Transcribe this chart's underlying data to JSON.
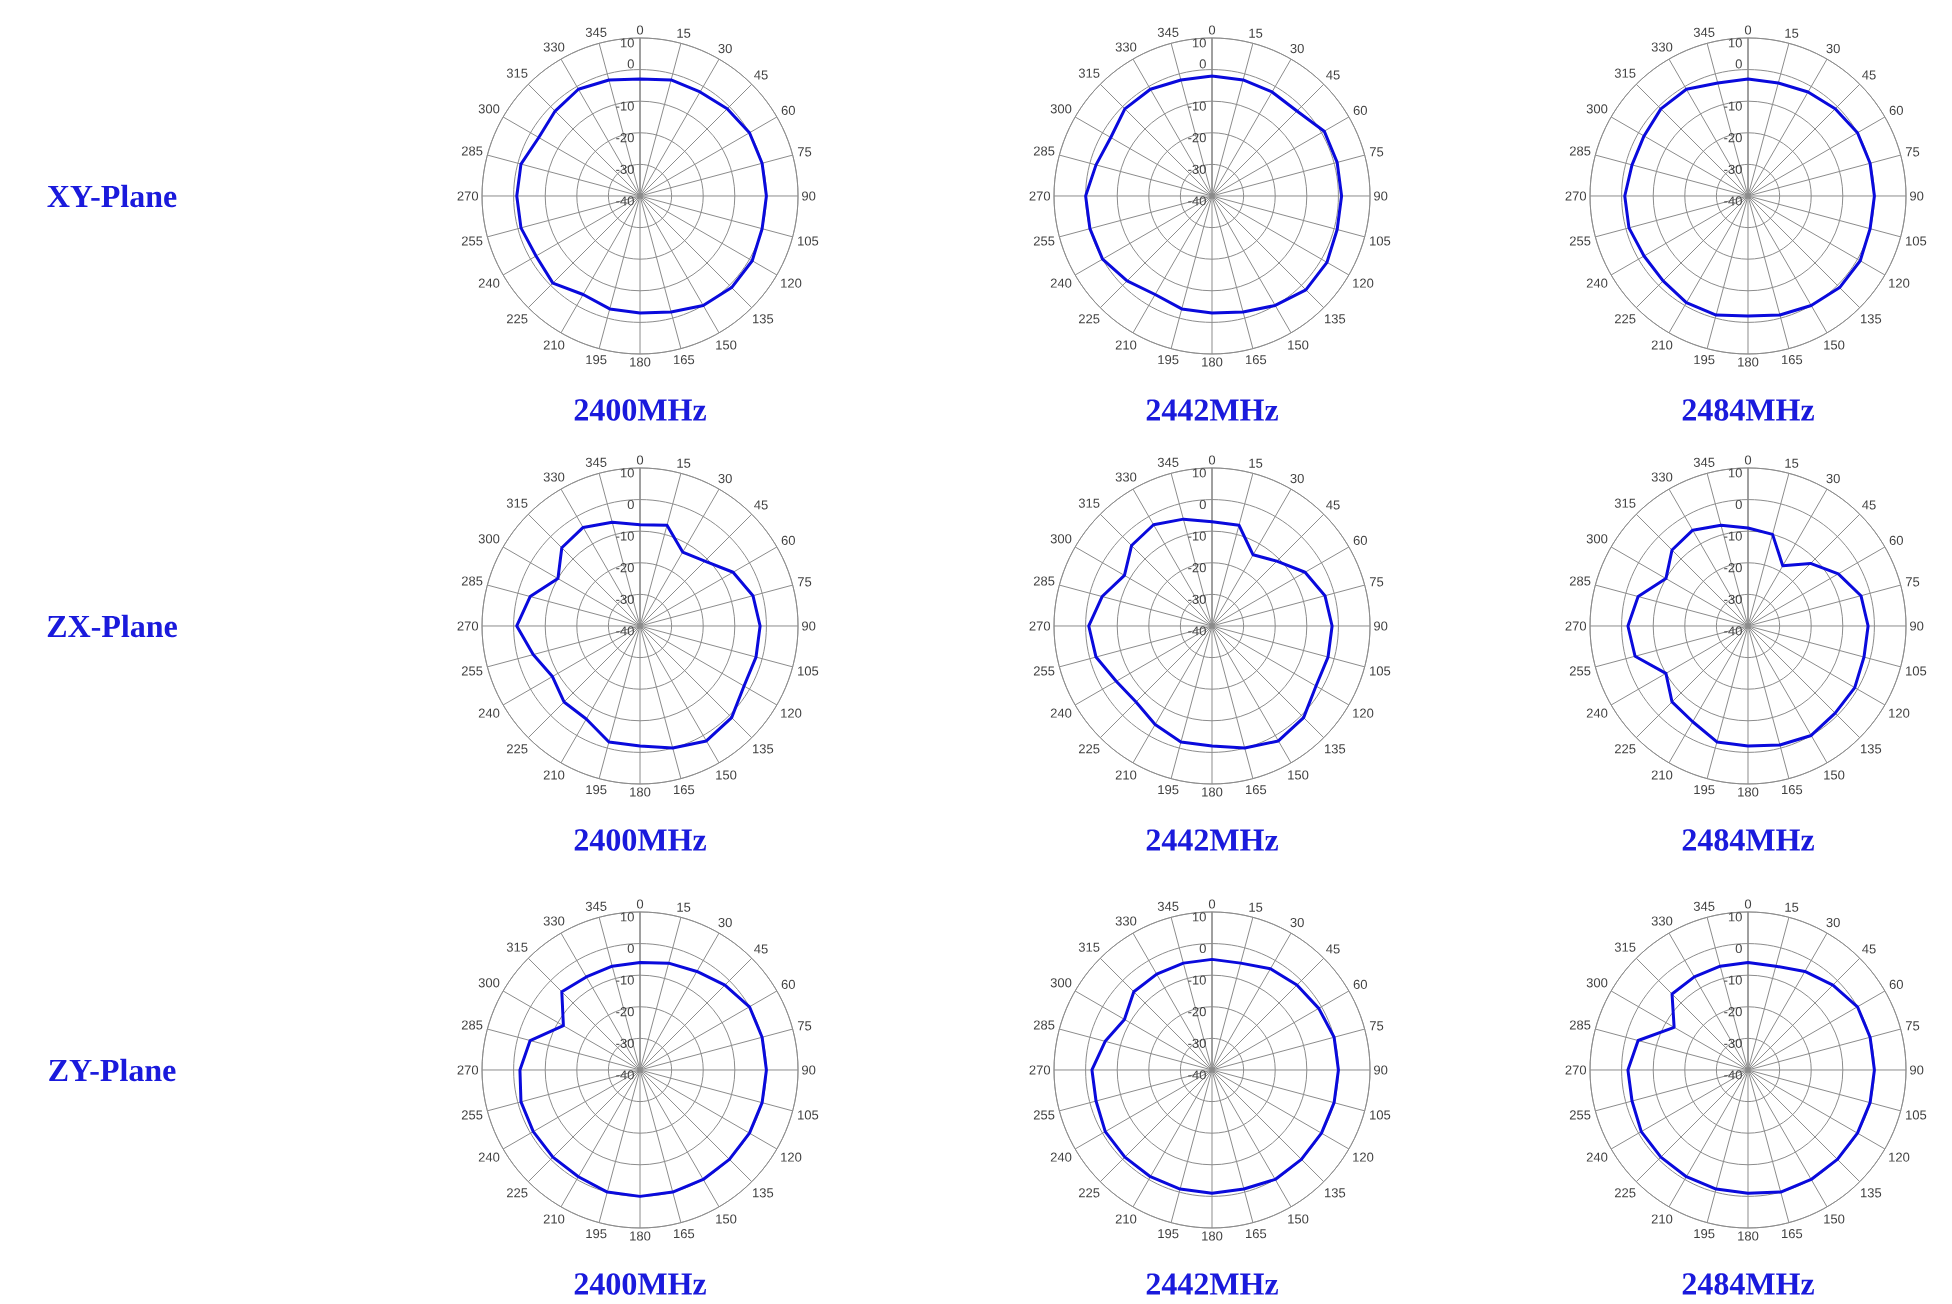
{
  "chart_data": [
    {
      "type": "radar",
      "title": "2400MHz",
      "annotations": [
        "XY-Plane"
      ],
      "categories": [
        "0",
        "15",
        "30",
        "45",
        "60",
        "75",
        "90",
        "105",
        "120",
        "135",
        "150",
        "165",
        "180",
        "195",
        "210",
        "225",
        "240",
        "255",
        "270",
        "285",
        "300",
        "315",
        "330",
        "345"
      ],
      "ylim": [
        -40,
        10
      ],
      "yticks": [
        -40,
        -30,
        -20,
        -10,
        0,
        10
      ],
      "grid": true,
      "marker": "none",
      "series": [
        {
          "color": "#0a0adc",
          "values": [
            -3,
            -2,
            -2,
            -1,
            0,
            0,
            0,
            0,
            1,
            1,
            0,
            -2,
            -3,
            -3,
            -4,
            -1,
            -2,
            -1,
            -1,
            -1,
            -3,
            -2,
            -1,
            -2
          ]
        }
      ]
    },
    {
      "type": "radar",
      "title": "2442MHz",
      "categories": [
        "0",
        "15",
        "30",
        "45",
        "60",
        "75",
        "90",
        "105",
        "120",
        "135",
        "150",
        "165",
        "180",
        "195",
        "210",
        "225",
        "240",
        "255",
        "270",
        "285",
        "300",
        "315",
        "330",
        "345"
      ],
      "ylim": [
        -40,
        10
      ],
      "yticks": [
        -40,
        -30,
        -20,
        -10,
        0,
        10
      ],
      "grid": true,
      "marker": "none",
      "series": [
        {
          "color": "#0a0adc",
          "values": [
            -2,
            -2,
            -2,
            -2,
            1,
            1,
            1,
            1,
            2,
            2,
            0,
            -2,
            -3,
            -3,
            -4,
            -2,
            0,
            0,
            0,
            -2,
            -3,
            -1,
            -1,
            -2
          ]
        }
      ]
    },
    {
      "type": "radar",
      "title": "2484MHz",
      "categories": [
        "0",
        "15",
        "30",
        "45",
        "60",
        "75",
        "90",
        "105",
        "120",
        "135",
        "150",
        "165",
        "180",
        "195",
        "210",
        "225",
        "240",
        "255",
        "270",
        "285",
        "300",
        "315",
        "330",
        "345"
      ],
      "ylim": [
        -40,
        10
      ],
      "yticks": [
        -40,
        -30,
        -20,
        -10,
        0,
        10
      ],
      "grid": true,
      "marker": "none",
      "series": [
        {
          "color": "#0a0adc",
          "values": [
            -3,
            -3,
            -2,
            -1,
            0,
            0,
            0,
            0,
            1,
            1,
            0,
            -1,
            -2,
            -1,
            -1,
            -2,
            -2,
            -1,
            -1,
            -2,
            -2,
            -1,
            -1,
            -3
          ]
        }
      ]
    },
    {
      "type": "radar",
      "title": "2400MHz",
      "annotations": [
        "ZX-Plane"
      ],
      "categories": [
        "0",
        "15",
        "30",
        "45",
        "60",
        "75",
        "90",
        "105",
        "120",
        "135",
        "150",
        "165",
        "180",
        "195",
        "210",
        "225",
        "240",
        "255",
        "270",
        "285",
        "300",
        "315",
        "330",
        "345"
      ],
      "ylim": [
        -40,
        10
      ],
      "yticks": [
        -40,
        -30,
        -20,
        -10,
        0,
        10
      ],
      "grid": true,
      "marker": "none",
      "series": [
        {
          "color": "#0a0adc",
          "values": [
            -8,
            -7,
            -13,
            -11,
            -6,
            -3,
            -2,
            -2,
            -2,
            1,
            2,
            0,
            -2,
            -2,
            -6,
            -6,
            -8,
            -5,
            -1,
            -4,
            -10,
            -5,
            -4,
            -6
          ]
        }
      ]
    },
    {
      "type": "radar",
      "title": "2442MHz",
      "categories": [
        "0",
        "15",
        "30",
        "45",
        "60",
        "75",
        "90",
        "105",
        "120",
        "135",
        "150",
        "165",
        "180",
        "195",
        "210",
        "225",
        "240",
        "255",
        "270",
        "285",
        "300",
        "315",
        "330",
        "345"
      ],
      "ylim": [
        -40,
        10
      ],
      "yticks": [
        -40,
        -30,
        -20,
        -10,
        0,
        10
      ],
      "grid": true,
      "marker": "none",
      "series": [
        {
          "color": "#0a0adc",
          "values": [
            -7,
            -7,
            -14,
            -11,
            -6,
            -3,
            -2,
            -2,
            -2,
            1,
            2,
            0,
            -2,
            -2,
            -4,
            -6,
            -5,
            -2,
            -1,
            -4,
            -8,
            -4,
            -3,
            -5
          ]
        }
      ]
    },
    {
      "type": "radar",
      "title": "2484MHz",
      "categories": [
        "0",
        "15",
        "30",
        "45",
        "60",
        "75",
        "90",
        "105",
        "120",
        "135",
        "150",
        "165",
        "180",
        "195",
        "210",
        "225",
        "240",
        "255",
        "270",
        "285",
        "300",
        "315",
        "330",
        "345"
      ],
      "ylim": [
        -40,
        10
      ],
      "yticks": [
        -40,
        -30,
        -20,
        -10,
        0,
        10
      ],
      "grid": true,
      "marker": "none",
      "series": [
        {
          "color": "#0a0adc",
          "values": [
            -9,
            -10,
            -18,
            -12,
            -7,
            -3,
            -2,
            -2,
            -1,
            -1,
            0,
            -1,
            -2,
            -2,
            -5,
            -6,
            -10,
            -3,
            -2,
            -4,
            -10,
            -6,
            -5,
            -7
          ]
        }
      ]
    },
    {
      "type": "radar",
      "title": "2400MHz",
      "annotations": [
        "ZY-Plane"
      ],
      "categories": [
        "0",
        "15",
        "30",
        "45",
        "60",
        "75",
        "90",
        "105",
        "120",
        "135",
        "150",
        "165",
        "180",
        "195",
        "210",
        "225",
        "240",
        "255",
        "270",
        "285",
        "300",
        "315",
        "330",
        "345"
      ],
      "ylim": [
        -40,
        10
      ],
      "yticks": [
        -40,
        -30,
        -20,
        -10,
        0,
        10
      ],
      "grid": true,
      "marker": "none",
      "series": [
        {
          "color": "#0a0adc",
          "values": [
            -6,
            -5,
            -4,
            -2,
            0,
            0,
            0,
            0,
            0,
            0,
            0,
            0,
            0,
            0,
            -1,
            -1,
            -1,
            -1,
            -2,
            -4,
            -12,
            -5,
            -6,
            -6
          ]
        }
      ]
    },
    {
      "type": "radar",
      "title": "2442MHz",
      "categories": [
        "0",
        "15",
        "30",
        "45",
        "60",
        "75",
        "90",
        "105",
        "120",
        "135",
        "150",
        "165",
        "180",
        "195",
        "210",
        "225",
        "240",
        "255",
        "270",
        "285",
        "300",
        "315",
        "330",
        "345"
      ],
      "ylim": [
        -40,
        10
      ],
      "yticks": [
        -40,
        -30,
        -20,
        -10,
        0,
        10
      ],
      "grid": true,
      "marker": "none",
      "series": [
        {
          "color": "#0a0adc",
          "values": [
            -5,
            -5,
            -3,
            -2,
            -1,
            0,
            0,
            0,
            0,
            0,
            0,
            -1,
            -1,
            -1,
            -1,
            -1,
            -1,
            -2,
            -2,
            -5,
            -8,
            -5,
            -5,
            -5
          ]
        }
      ]
    },
    {
      "type": "radar",
      "title": "2484MHz",
      "categories": [
        "0",
        "15",
        "30",
        "45",
        "60",
        "75",
        "90",
        "105",
        "120",
        "135",
        "150",
        "165",
        "180",
        "195",
        "210",
        "225",
        "240",
        "255",
        "270",
        "285",
        "300",
        "315",
        "330",
        "345"
      ],
      "ylim": [
        -40,
        10
      ],
      "yticks": [
        -40,
        -30,
        -20,
        -10,
        0,
        10
      ],
      "grid": true,
      "marker": "none",
      "series": [
        {
          "color": "#0a0adc",
          "values": [
            -6,
            -6,
            -4,
            -2,
            0,
            0,
            0,
            0,
            0,
            0,
            0,
            0,
            -1,
            -1,
            -1,
            -1,
            -1,
            -2,
            -2,
            -4,
            -13,
            -6,
            -6,
            -6
          ]
        }
      ]
    }
  ]
}
